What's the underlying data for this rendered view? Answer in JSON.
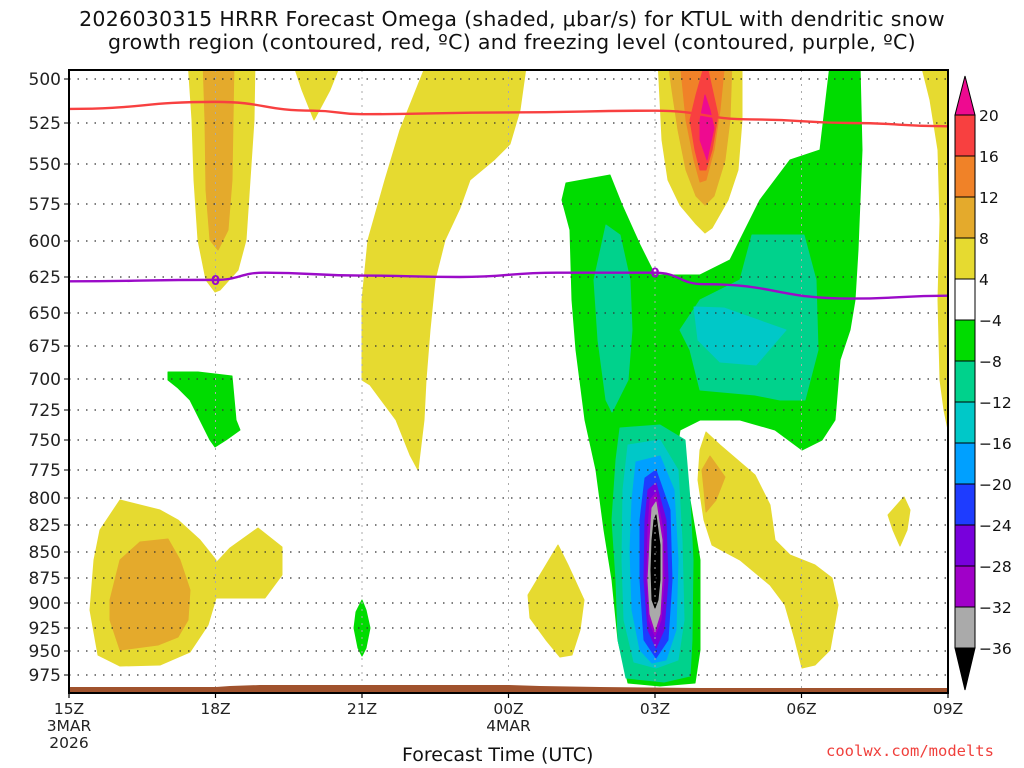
{
  "chart_data": {
    "type": "heatmap",
    "title_lines": [
      "2026030315 HRRR Forecast Omega (shaded, μbar/s) for KTUL with dendritic snow",
      "growth region (contoured, red, ºC) and freezing level (contoured, purple, ºC)"
    ],
    "xlabel": "Forecast Time (UTC)",
    "ylabel": "",
    "x_ticks": [
      {
        "label": "15Z",
        "sub": [
          "3MAR",
          "2026"
        ]
      },
      {
        "label": "18Z",
        "sub": []
      },
      {
        "label": "21Z",
        "sub": []
      },
      {
        "label": "00Z",
        "sub": [
          "4MAR"
        ]
      },
      {
        "label": "03Z",
        "sub": []
      },
      {
        "label": "06Z",
        "sub": []
      },
      {
        "label": "09Z",
        "sub": []
      }
    ],
    "x_range_hours": [
      0,
      18
    ],
    "y_ticks": [
      "500",
      "525",
      "550",
      "575",
      "600",
      "625",
      "650",
      "675",
      "700",
      "725",
      "750",
      "775",
      "800",
      "825",
      "850",
      "875",
      "900",
      "925",
      "950",
      "975"
    ],
    "y_range_mb": [
      500,
      985
    ],
    "grid": true,
    "colorbar": {
      "levels": [
        "20",
        "16",
        "12",
        "8",
        "4",
        "-4",
        "-8",
        "-12",
        "-16",
        "-20",
        "-24",
        "-28",
        "-32",
        "-36"
      ],
      "colors": [
        "#ee0a90",
        "#f84040",
        "#f08228",
        "#e4aa2c",
        "#e6da30",
        "#ffffff",
        "#00dc00",
        "#00d28c",
        "#00c8c8",
        "#00a0ff",
        "#1e3cff",
        "#7800dc",
        "#a000c8",
        "#aaaaaa",
        "#000000"
      ],
      "placement": "right"
    },
    "contour_lines": [
      {
        "name": "dendritic growth (-12C)",
        "color": "#f84040",
        "points": [
          [
            0,
            517
          ],
          [
            3,
            513
          ],
          [
            5,
            518
          ],
          [
            6,
            520
          ],
          [
            9,
            519
          ],
          [
            12,
            518
          ],
          [
            14,
            523
          ],
          [
            16,
            525
          ],
          [
            18,
            527
          ]
        ]
      },
      {
        "name": "freezing level (0C)",
        "color": "#9b0bc8",
        "label": "0",
        "points": [
          [
            0,
            628
          ],
          [
            3,
            627
          ],
          [
            4,
            622
          ],
          [
            6,
            624
          ],
          [
            8,
            625
          ],
          [
            10,
            622
          ],
          [
            12,
            622
          ],
          [
            13,
            630
          ],
          [
            16,
            640
          ],
          [
            18,
            638
          ]
        ]
      }
    ],
    "shaded_regions": [
      {
        "value_band": "4 to 8",
        "desc": "yellow column near 18Z from 500 to 630 mb"
      },
      {
        "value_band": "8 to 12",
        "desc": "orange core near 18Z from 500 to 600 mb"
      },
      {
        "value_band": "4 to 8",
        "desc": "yellow tongue 21Z-00Z from 500 down to 780 mb"
      },
      {
        "value_band": "8 to 20+",
        "desc": "warm core near 04Z from 500 to 590 mb, peak >20"
      },
      {
        "value_band": "-4 to -16",
        "desc": "green/teal region 02Z-07Z from 570 to 760 mb"
      },
      {
        "value_band": "-4 to -36",
        "desc": "strong ascent column near 03Z from 760 to 985 mb, core <-36"
      },
      {
        "value_band": "4 to 12",
        "desc": "low-level yellow/orange blob 16Z-18Z 800-960 mb"
      },
      {
        "value_band": "4 to 8",
        "desc": "yellow region 04Z-07Z 760-960 mb"
      }
    ]
  },
  "footer": {
    "xtitle": "Forecast Time (UTC)",
    "credit": "coolwx.com/modelts"
  },
  "colors": {
    "ground": "#a0522d",
    "grid": "#333333"
  }
}
